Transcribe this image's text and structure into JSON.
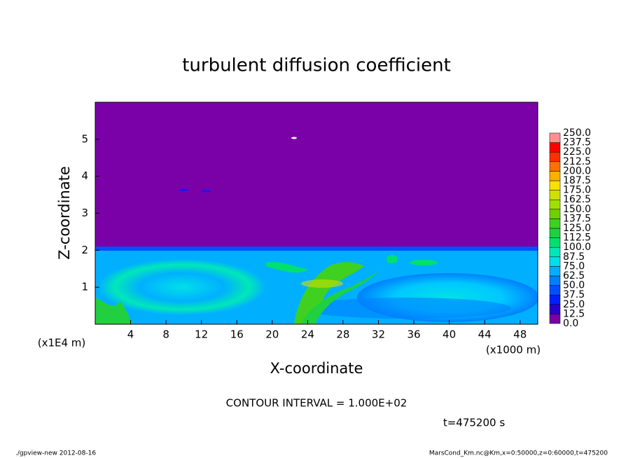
{
  "chart_data": {
    "type": "contour",
    "title": "turbulent diffusion coefficient",
    "x_label": "X-coordinate",
    "y_label": "Z-coordinate",
    "x_unit": "(x1000 m)",
    "y_unit": "(x1E4 m)",
    "xlim": [
      0,
      50
    ],
    "xticks": [
      4,
      8,
      12,
      16,
      20,
      24,
      28,
      32,
      36,
      40,
      44,
      48
    ],
    "ylim": [
      0,
      6
    ],
    "yticks": [
      1,
      2,
      3,
      4,
      5
    ],
    "contour_interval": "CONTOUR INTERVAL = 1.000E+02",
    "time_label": "t=475200 s",
    "footer_left": "./gpview-new   2012-08-16",
    "footer_right": "MarsCond_Km.nc@Km,x=0:50000,z=0:60000,t=475200",
    "levels": [
      {
        "value": 0,
        "label": "0.0"
      },
      12.5,
      {
        "value": 25,
        "label": "25.0"
      },
      37.5,
      {
        "value": 50,
        "label": "50.0"
      },
      62.5,
      {
        "value": 75,
        "label": "75.0"
      },
      87.5,
      {
        "value": 100,
        "label": "100.0"
      },
      112.5,
      {
        "value": 125,
        "label": "125.0"
      },
      137.5,
      {
        "value": 150,
        "label": "150.0"
      },
      162.5,
      {
        "value": 175,
        "label": "175.0"
      },
      187.5,
      {
        "value": 200,
        "label": "200.0"
      },
      212.5,
      {
        "value": 225,
        "label": "225.0"
      },
      237.5,
      {
        "value": 250,
        "label": "250.0"
      }
    ],
    "colors": [
      "#7a00a8",
      "#2a00c8",
      "#0020ff",
      "#0050ff",
      "#0080ff",
      "#00b0ff",
      "#00e0e8",
      "#00e8b8",
      "#00e070",
      "#20d040",
      "#40d020",
      "#70d000",
      "#a0e000",
      "#d0e000",
      "#f8e000",
      "#ffb000",
      "#ff7000",
      "#ff3000",
      "#ff0000",
      "#ff9090"
    ]
  }
}
